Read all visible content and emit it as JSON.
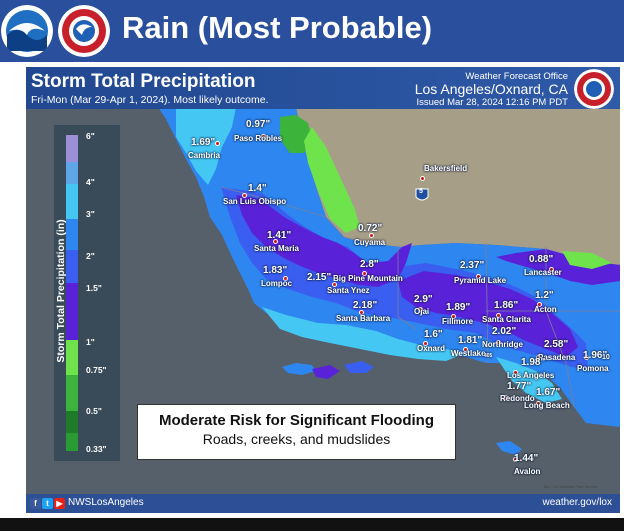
{
  "slide": {
    "close_icon": "✕",
    "title": "Rain (Most Probable)",
    "logos": [
      "noaa-logo",
      "nws-logo"
    ],
    "colors": {
      "banner": "#2a4f9d",
      "map_header": "#214890",
      "footer": "#2c4f95"
    }
  },
  "map": {
    "title": "Storm Total Precipitation",
    "subtitle": "Fri-Mon (Mar 29-Apr 1, 2024). Most likely outcome.",
    "office_label": "Weather Forecast Office",
    "office_name": "Los Angeles/Oxnard, CA",
    "issued": "Issued Mar 28, 2024 12:16 PM PDT",
    "legend": {
      "label": "Storm Total Precipitation (in)",
      "ticks": [
        "6\"",
        "4\"",
        "3\"",
        "2\"",
        "1.5\"",
        "1\"",
        "0.75\"",
        "0.5\"",
        "0.33\""
      ],
      "colors": [
        "#9c8fd6",
        "#5fa6e9",
        "#44c7f3",
        "#2e86f0",
        "#3a5ef0",
        "#5a22d8",
        "#6fe34c",
        "#3cb33a",
        "#1f7a2a",
        "#2a9a34"
      ]
    },
    "highway_label": "5",
    "locations": [
      {
        "place": "Cambria",
        "amount": "1.69\""
      },
      {
        "place": "Paso Robles",
        "amount": "0.97\""
      },
      {
        "place": "San Luis Obispo",
        "amount": "1.4\""
      },
      {
        "place": "Bakersfield",
        "amount": ""
      },
      {
        "place": "Cuyama",
        "amount": "0.72\""
      },
      {
        "place": "Santa Maria",
        "amount": "1.41\""
      },
      {
        "place": "Big Pine Mountain",
        "amount": "2.8\""
      },
      {
        "place": "Lompoc",
        "amount": "1.83\""
      },
      {
        "place": "Santa Ynez",
        "amount": "2.15\""
      },
      {
        "place": "Santa Barbara",
        "amount": "2.18\""
      },
      {
        "place": "Pyramid Lake",
        "amount": "2.37\""
      },
      {
        "place": "Lancaster",
        "amount": "0.88\""
      },
      {
        "place": "Ojai",
        "amount": "2.9\""
      },
      {
        "place": "Fillmore",
        "amount": "1.89\""
      },
      {
        "place": "Santa Clarita",
        "amount": "1.86\""
      },
      {
        "place": "Acton",
        "amount": "1.2\""
      },
      {
        "place": "Oxnard",
        "amount": "1.6\""
      },
      {
        "place": "Westlake",
        "amount": "1.81\""
      },
      {
        "place": "Northridge",
        "amount": "2.02\""
      },
      {
        "place": "Pasadena",
        "amount": "2.58\""
      },
      {
        "place": "Pomona",
        "amount": "1.96\""
      },
      {
        "place": "Los Angeles",
        "amount": "1.98\""
      },
      {
        "place": "Redondo",
        "amount": "1.77\""
      },
      {
        "place": "Long Beach",
        "amount": "1.67\""
      },
      {
        "place": "Avalon",
        "amount": "1.44\""
      }
    ],
    "extra_labels": {
      "i405": "405",
      "i10": "10"
    },
    "risk_title": "Moderate Risk for Significant Flooding",
    "risk_subtitle": "Roads, creeks, and mudslides",
    "credit": "Esri, US National Park Service",
    "footer_handle": "NWSLosAngeles",
    "footer_url": "weather.gov/lox",
    "social_icons": [
      "facebook-icon",
      "twitter-icon",
      "youtube-icon"
    ]
  }
}
